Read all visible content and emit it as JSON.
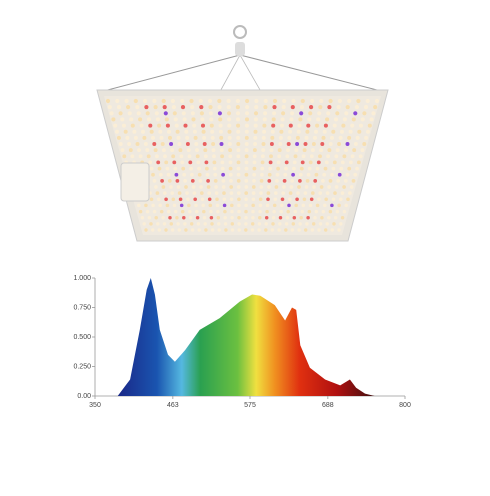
{
  "chart_data": {
    "type": "area",
    "x": [
      383,
      401,
      415,
      425,
      431,
      437,
      444,
      456,
      466,
      481,
      502,
      531,
      560,
      578,
      590,
      611,
      626,
      636,
      642,
      648,
      662,
      684,
      706,
      720,
      729,
      742,
      756
    ],
    "values": [
      0,
      0.14,
      0.56,
      0.9,
      1.0,
      0.86,
      0.56,
      0.35,
      0.29,
      0.39,
      0.56,
      0.66,
      0.8,
      0.86,
      0.85,
      0.77,
      0.64,
      0.75,
      0.73,
      0.43,
      0.24,
      0.14,
      0.09,
      0.14,
      0.07,
      0.02,
      0
    ],
    "xlim": [
      350,
      800
    ],
    "xticks": [
      350,
      463,
      575,
      688,
      800
    ],
    "ylim": [
      0,
      1
    ],
    "yticks": [
      {
        "value": 0,
        "label": "0.00"
      },
      {
        "value": 0.25,
        "label": "0.250"
      },
      {
        "value": 0.5,
        "label": "0.500"
      },
      {
        "value": 0.75,
        "label": "0.750"
      },
      {
        "value": 1,
        "label": "1.000"
      }
    ]
  }
}
